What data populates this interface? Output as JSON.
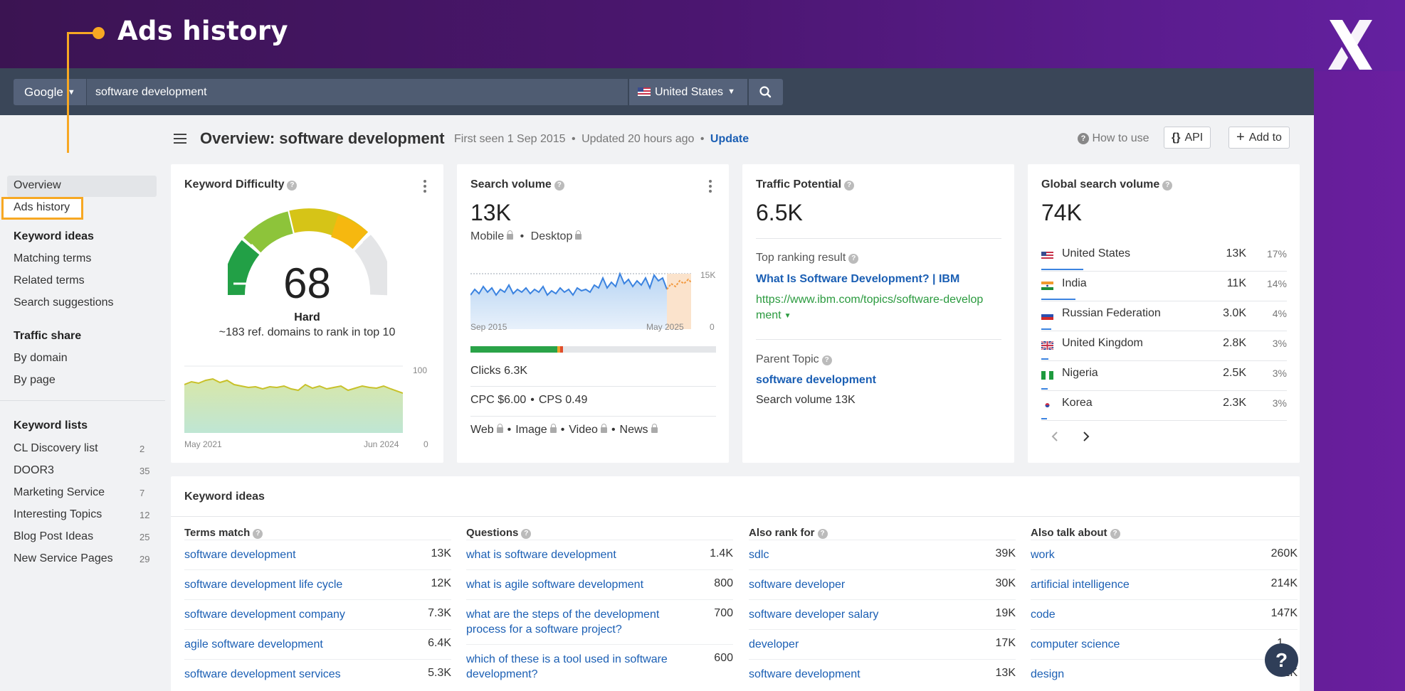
{
  "callout": {
    "title": "Ads history"
  },
  "searchbar": {
    "engine": "Google",
    "query": "software development",
    "country": "United States"
  },
  "sidebar": {
    "overview": "Overview",
    "ads_history": "Ads history",
    "keyword_ideas_heading": "Keyword ideas",
    "keyword_ideas": [
      "Matching terms",
      "Related terms",
      "Search suggestions"
    ],
    "traffic_share_heading": "Traffic share",
    "traffic_share": [
      "By domain",
      "By page"
    ],
    "keyword_lists_heading": "Keyword lists",
    "keyword_lists": [
      {
        "label": "CL Discovery list",
        "count": "2"
      },
      {
        "label": "DOOR3",
        "count": "35"
      },
      {
        "label": "Marketing Service",
        "count": "7"
      },
      {
        "label": "Interesting Topics",
        "count": "12"
      },
      {
        "label": "Blog Post Ideas",
        "count": "25"
      },
      {
        "label": "New Service Pages",
        "count": "29"
      }
    ]
  },
  "header": {
    "title": "Overview: software development",
    "first_seen": "First seen 1 Sep 2015",
    "updated": "Updated 20 hours ago",
    "update_link": "Update",
    "how_to_use": "How to use",
    "api_button": "API",
    "add_to_button": "Add to"
  },
  "kd_card": {
    "title": "Keyword Difficulty",
    "value": "68",
    "label": "Hard",
    "subtitle": "~183 ref. domains to rank in top 10",
    "chart_y_max": "100",
    "chart_y_min": "0",
    "chart_x_start": "May 2021",
    "chart_x_end": "Jun 2024"
  },
  "sv_card": {
    "title": "Search volume",
    "value": "13K",
    "mobile": "Mobile",
    "desktop": "Desktop",
    "chart_y_max": "15K",
    "chart_y_min": "0",
    "chart_x_start": "Sep 2015",
    "chart_x_end": "May 2025",
    "clicks": "Clicks 6.3K",
    "cpc": "CPC $6.00",
    "cps": "CPS 0.49",
    "serp_features": [
      "Web",
      "Image",
      "Video",
      "News"
    ]
  },
  "tp_card": {
    "title": "Traffic Potential",
    "value": "6.5K",
    "top_ranking_label": "Top ranking result",
    "top_ranking_title": "What Is Software Development? | IBM",
    "top_ranking_url_line1": "https://www.ibm.com/topics/software-develop",
    "top_ranking_url_line2": "ment",
    "parent_topic_label": "Parent Topic",
    "parent_topic": "software development",
    "parent_volume": "Search volume 13K"
  },
  "gsv_card": {
    "title": "Global search volume",
    "value": "74K",
    "countries": [
      {
        "name": "United States",
        "vol": "13K",
        "pct": "17%"
      },
      {
        "name": "India",
        "vol": "11K",
        "pct": "14%"
      },
      {
        "name": "Russian Federation",
        "vol": "3.0K",
        "pct": "4%"
      },
      {
        "name": "United Kingdom",
        "vol": "2.8K",
        "pct": "3%"
      },
      {
        "name": "Nigeria",
        "vol": "2.5K",
        "pct": "3%"
      },
      {
        "name": "Korea",
        "vol": "2.3K",
        "pct": "3%"
      }
    ]
  },
  "keyword_ideas": {
    "title": "Keyword ideas",
    "columns": [
      {
        "heading": "Terms match",
        "rows": [
          {
            "term": "software development",
            "vol": "13K"
          },
          {
            "term": "software development life cycle",
            "vol": "12K"
          },
          {
            "term": "software development company",
            "vol": "7.3K"
          },
          {
            "term": "agile software development",
            "vol": "6.4K"
          },
          {
            "term": "software development services",
            "vol": "5.3K"
          }
        ]
      },
      {
        "heading": "Questions",
        "rows": [
          {
            "term": "what is software development",
            "vol": "1.4K"
          },
          {
            "term": "what is agile software development",
            "vol": "800"
          },
          {
            "term": "what are the steps of the development process for a software project?",
            "vol": "700"
          },
          {
            "term": "which of these is a tool used in software development?",
            "vol": "600"
          }
        ]
      },
      {
        "heading": "Also rank for",
        "rows": [
          {
            "term": "sdlc",
            "vol": "39K"
          },
          {
            "term": "software developer",
            "vol": "30K"
          },
          {
            "term": "software developer salary",
            "vol": "19K"
          },
          {
            "term": "developer",
            "vol": "17K"
          },
          {
            "term": "software development",
            "vol": "13K"
          }
        ]
      },
      {
        "heading": "Also talk about",
        "rows": [
          {
            "term": "work",
            "vol": "260K"
          },
          {
            "term": "artificial intelligence",
            "vol": "214K"
          },
          {
            "term": "code",
            "vol": "147K"
          },
          {
            "term": "computer science",
            "vol": "1"
          },
          {
            "term": "design",
            "vol": "91K"
          }
        ]
      }
    ]
  },
  "help": {
    "label": "?"
  },
  "colors": {
    "accent_orange": "#f7a823",
    "link_blue": "#1b5fb4",
    "url_green": "#2a9a3e",
    "topbar": "#3a4658"
  }
}
